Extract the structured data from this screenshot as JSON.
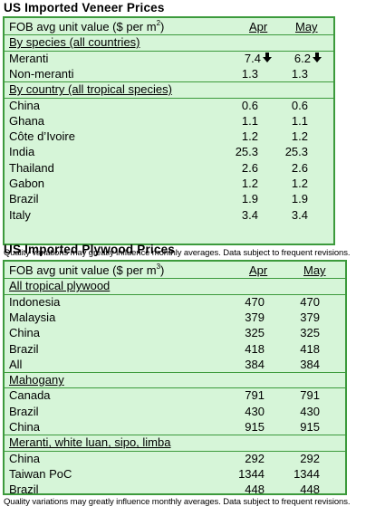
{
  "veneer": {
    "title": "US Imported Veneer Prices",
    "header_label": "FOB avg unit value ($ per m",
    "header_sup": "2",
    "header_close": ")",
    "col1": "Apr",
    "col2": "May",
    "section1": "By species (all countries)",
    "species": [
      {
        "name": "Meranti",
        "apr": "7.4",
        "may": "6.2",
        "trend": "down-arrow-icon"
      },
      {
        "name": "Non-meranti",
        "apr": "1.3",
        "may": "1.3"
      }
    ],
    "section2": "By country (all tropical species)",
    "countries": [
      {
        "name": "China",
        "apr": "0.6",
        "may": "0.6"
      },
      {
        "name": "Ghana",
        "apr": "1.1",
        "may": "1.1"
      },
      {
        "name": "Côte d’Ivoire",
        "apr": "1.2",
        "may": "1.2"
      },
      {
        "name": "India",
        "apr": "25.3",
        "may": "25.3"
      },
      {
        "name": "Thailand",
        "apr": "2.6",
        "may": "2.6"
      },
      {
        "name": "Gabon",
        "apr": "1.2",
        "may": "1.2"
      },
      {
        "name": "Brazil",
        "apr": "1.9",
        "may": "1.9"
      },
      {
        "name": "Italy",
        "apr": "3.4",
        "may": "3.4"
      }
    ],
    "note": "Quality variations may greatly influence monthly averages. Data subject to frequent revisions."
  },
  "plywood": {
    "title": "US Imported Plywood Prices",
    "header_label": "FOB avg unit value ($ per m",
    "header_sup": "3",
    "header_close": ")",
    "col1": "Apr",
    "col2": "May",
    "section1": "All tropical plywood",
    "tropical": [
      {
        "name": "Indonesia",
        "apr": "470",
        "may": "470"
      },
      {
        "name": "Malaysia",
        "apr": "379",
        "may": "379"
      },
      {
        "name": "China",
        "apr": "325",
        "may": "325"
      },
      {
        "name": "Brazil",
        "apr": "418",
        "may": "418"
      },
      {
        "name": "All",
        "apr": "384",
        "may": "384"
      }
    ],
    "section2": "Mahogany",
    "mahogany": [
      {
        "name": "Canada",
        "apr": "791",
        "may": "791"
      },
      {
        "name": "Brazil",
        "apr": "430",
        "may": "430"
      },
      {
        "name": "China",
        "apr": "915",
        "may": "915"
      }
    ],
    "section3": "Meranti, white luan, sipo, limba",
    "meranti": [
      {
        "name": "China",
        "apr": "292",
        "may": "292"
      },
      {
        "name": "Taiwan PoC",
        "apr": "1344",
        "may": "1344"
      },
      {
        "name": "Brazil",
        "apr": "448",
        "may": "448"
      }
    ],
    "note": "Quality variations may greatly influence monthly averages. Data subject to frequent revisions."
  }
}
